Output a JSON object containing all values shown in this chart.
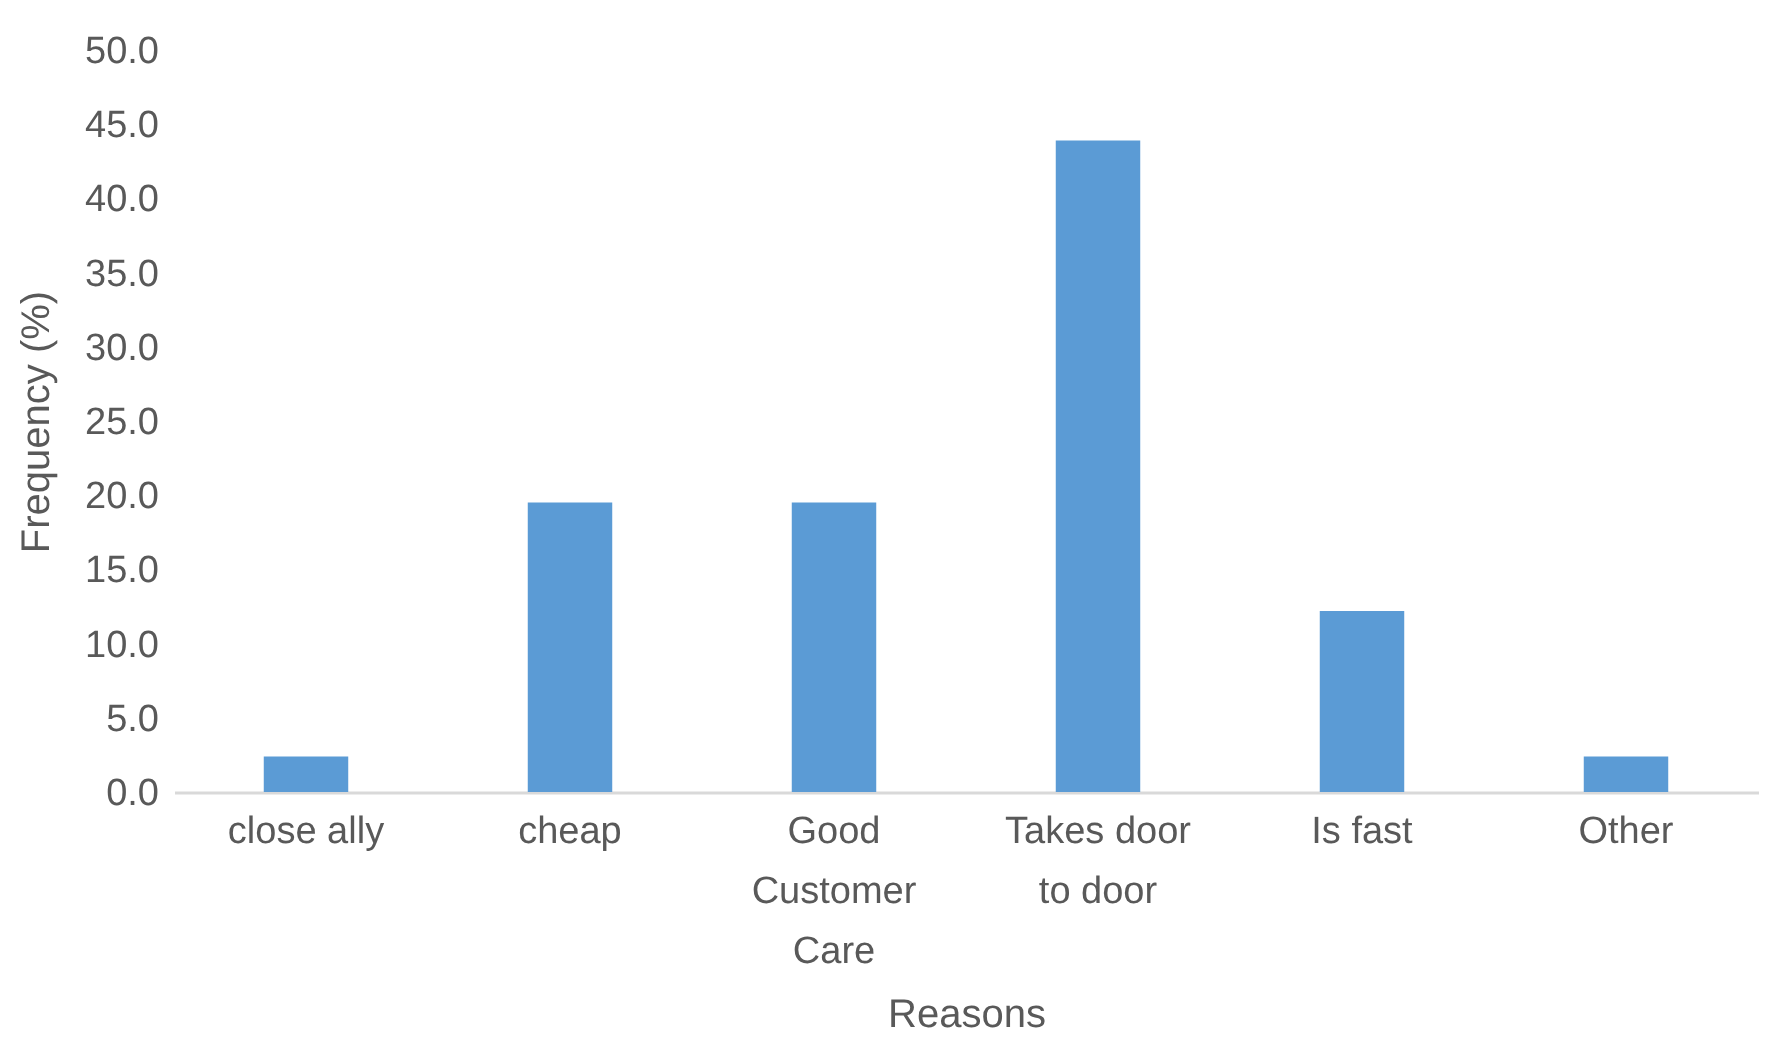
{
  "chart_data": {
    "type": "bar",
    "xlabel": "Reasons",
    "ylabel": "Frequency (%)",
    "categories": [
      "close ally",
      "cheap",
      "Good Customer Care",
      "Takes door to door",
      "Is fast",
      "Other"
    ],
    "values": [
      2.4,
      19.5,
      19.5,
      43.9,
      12.2,
      2.4
    ],
    "color": "#5b9bd5",
    "ylim": [
      0,
      50
    ],
    "yticks": [
      {
        "value": 0,
        "label": "0.0"
      },
      {
        "value": 5,
        "label": "5.0"
      },
      {
        "value": 10,
        "label": "10.0"
      },
      {
        "value": 15,
        "label": "15.0"
      },
      {
        "value": 20,
        "label": "20.0"
      },
      {
        "value": 25,
        "label": "25.0"
      },
      {
        "value": 30,
        "label": "30.0"
      },
      {
        "value": 35,
        "label": "35.0"
      },
      {
        "value": 40,
        "label": "40.0"
      },
      {
        "value": 45,
        "label": "45.0"
      },
      {
        "value": 50,
        "label": "50.0"
      }
    ],
    "grid": false
  }
}
